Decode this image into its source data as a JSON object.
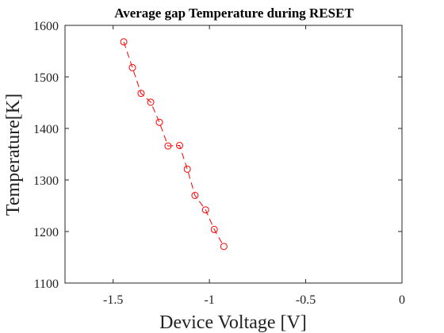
{
  "chart_data": {
    "type": "line",
    "title": "Average gap Temperature during RESET",
    "xlabel": "Device Voltage [V]",
    "ylabel": "Temperature[K]",
    "xlim": [
      -1.75,
      0
    ],
    "ylim": [
      1100,
      1600
    ],
    "x_ticks": [
      -1.5,
      -1,
      -0.5,
      0
    ],
    "x_tick_labels": [
      "-1.5",
      "-1",
      "-0.5",
      "0"
    ],
    "y_ticks": [
      1100,
      1200,
      1300,
      1400,
      1500,
      1600
    ],
    "y_tick_labels": [
      "1100",
      "1200",
      "1300",
      "1400",
      "1500",
      "1600"
    ],
    "grid": false,
    "series": [
      {
        "color": "#ff0000",
        "line_style": "dashed",
        "marker": "circle",
        "x": [
          -1.445,
          -1.4,
          -1.355,
          -1.305,
          -1.26,
          -1.215,
          -1.155,
          -1.115,
          -1.075,
          -1.02,
          -0.975,
          -0.925
        ],
        "y": [
          1568,
          1518,
          1468,
          1451,
          1412,
          1366,
          1367,
          1321,
          1270,
          1242,
          1204,
          1171
        ]
      }
    ]
  }
}
